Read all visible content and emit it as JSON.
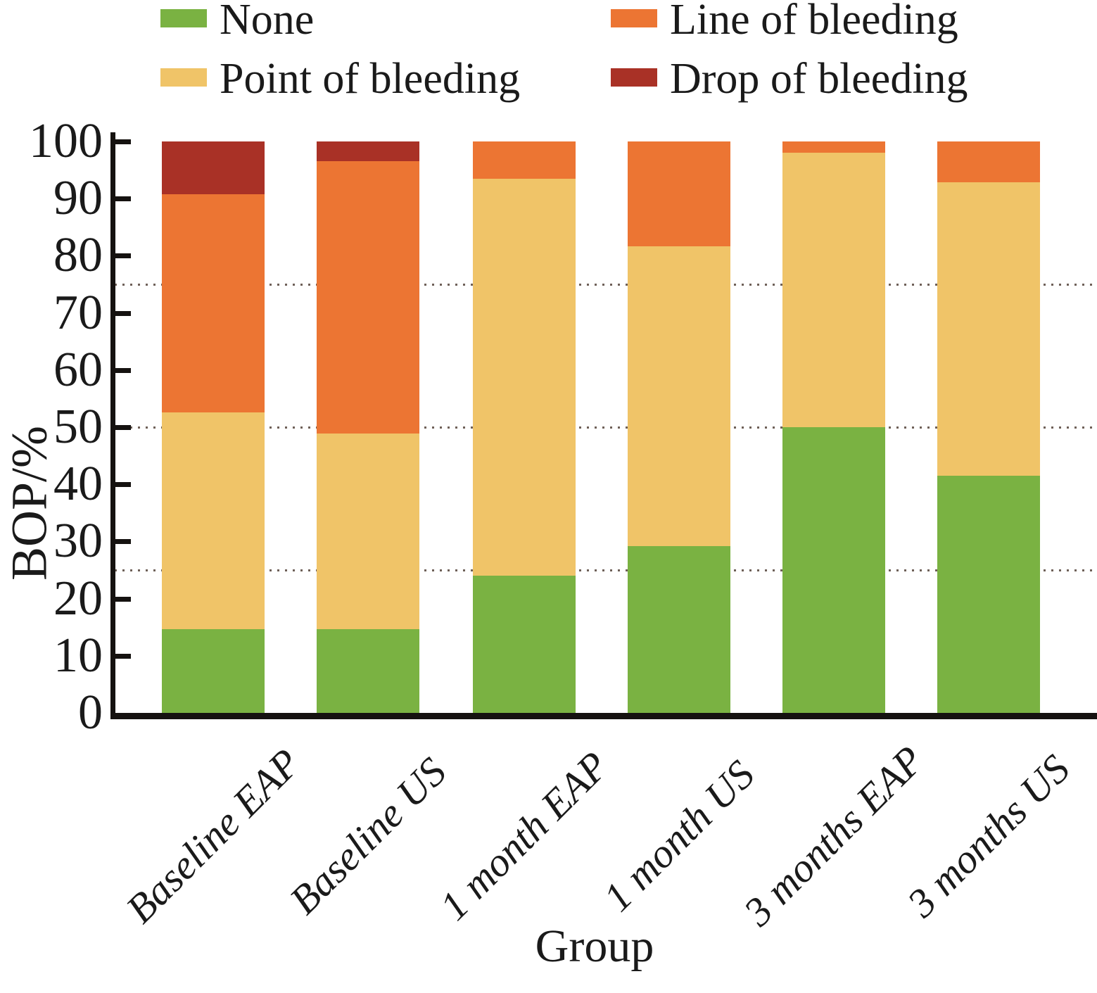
{
  "chart_data": {
    "type": "bar",
    "stacked": true,
    "title": "",
    "xlabel": "Group",
    "ylabel": "BOP/%",
    "ylim": [
      0,
      100
    ],
    "yticks": [
      0,
      10,
      20,
      30,
      40,
      50,
      60,
      70,
      80,
      90,
      100
    ],
    "gridlines_y": [
      25,
      50,
      75
    ],
    "grid": "dotted horizontal, behind bars",
    "legend_position": "top, two columns",
    "categories": [
      "Baseline EAP",
      "Baseline US",
      "1 month EAP",
      "1 month US",
      "3 months EAP",
      "3 months US"
    ],
    "series": [
      {
        "name": "None",
        "color": "#7ab242",
        "values": [
          14.6,
          14.6,
          24.0,
          29.2,
          50.0,
          41.5
        ]
      },
      {
        "name": "Point of bleeding",
        "color": "#f0c468",
        "values": [
          38.0,
          34.3,
          69.5,
          52.4,
          48.0,
          51.3
        ]
      },
      {
        "name": "Line of bleeding",
        "color": "#ec7533",
        "values": [
          38.2,
          47.6,
          6.5,
          18.4,
          2.0,
          7.2
        ]
      },
      {
        "name": "Drop of bleeding",
        "color": "#a93126",
        "values": [
          9.2,
          3.5,
          0,
          0,
          0,
          0
        ]
      }
    ]
  },
  "legend": {
    "items": [
      {
        "label": "None",
        "color": "#7ab242"
      },
      {
        "label": "Point of bleeding",
        "color": "#f0c468"
      },
      {
        "label": "Line of bleeding",
        "color": "#ec7533"
      },
      {
        "label": "Drop of bleeding",
        "color": "#a93126"
      }
    ]
  },
  "axes": {
    "y_title": "BOP/%",
    "x_title": "Group",
    "y_tick_labels": [
      "0",
      "10",
      "20",
      "30",
      "40",
      "50",
      "60",
      "70",
      "80",
      "90",
      "100"
    ]
  },
  "colors": {
    "axis": "#151210",
    "gridline": "#6e6058",
    "text": "#1a1a1a",
    "background": "#ffffff"
  }
}
